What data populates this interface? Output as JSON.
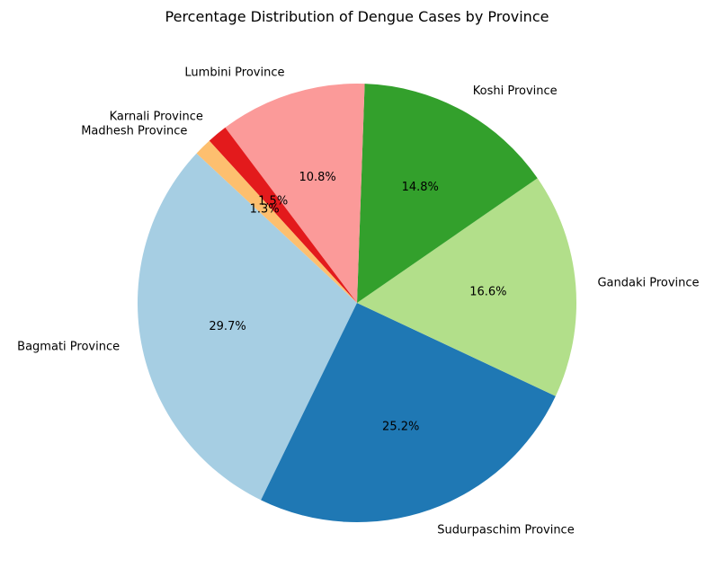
{
  "chart_data": {
    "type": "pie",
    "title": "Percentage Distribution of Dengue Cases by Province",
    "start_angle_deg": 137,
    "direction": "counterclockwise",
    "slices": [
      {
        "label": "Bagmati Province",
        "value": 29.7,
        "pct_label": "29.7%",
        "color": "#a6cee3"
      },
      {
        "label": "Sudurpaschim Province",
        "value": 25.2,
        "pct_label": "25.2%",
        "color": "#1f78b4"
      },
      {
        "label": "Gandaki Province",
        "value": 16.6,
        "pct_label": "16.6%",
        "color": "#b2df8a"
      },
      {
        "label": "Koshi Province",
        "value": 14.8,
        "pct_label": "14.8%",
        "color": "#33a02c"
      },
      {
        "label": "Lumbini Province",
        "value": 10.8,
        "pct_label": "10.8%",
        "color": "#fb9a99"
      },
      {
        "label": "Karnali Province",
        "value": 1.5,
        "pct_label": "1.5%",
        "color": "#e31a1c"
      },
      {
        "label": "Madhesh Province",
        "value": 1.3,
        "pct_label": "1.3%",
        "color": "#fdbf6f"
      }
    ]
  }
}
